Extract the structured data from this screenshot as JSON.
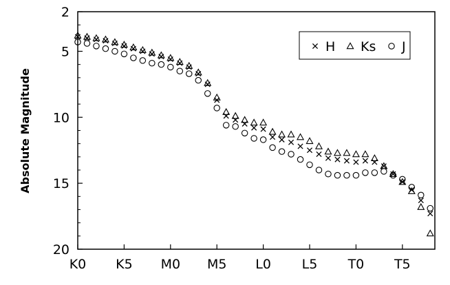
{
  "chart_data": {
    "type": "scatter",
    "title": "",
    "xlabel": "",
    "ylabel": "Absolute Magnitude",
    "x_ticks": [
      "K0",
      "K5",
      "M0",
      "M5",
      "L0",
      "L5",
      "T0",
      "T5"
    ],
    "xlim": [
      0,
      38.5
    ],
    "ylim": [
      20,
      2
    ],
    "y_ticks": [
      2,
      5,
      10,
      15,
      20
    ],
    "y_inverted": true,
    "grid": false,
    "legend_position": "top-right",
    "series": [
      {
        "name": "H",
        "marker": "x",
        "x": [
          0,
          1,
          2,
          3,
          4,
          5,
          6,
          7,
          8,
          9,
          10,
          11,
          12,
          13,
          14,
          15,
          16,
          17,
          18,
          19,
          20,
          21,
          22,
          23,
          24,
          25,
          26,
          27,
          28,
          29,
          30,
          31,
          32,
          33,
          34,
          35,
          36,
          37,
          38
        ],
        "y": [
          3.9,
          4.0,
          4.1,
          4.2,
          4.4,
          4.6,
          4.8,
          5.0,
          5.2,
          5.4,
          5.6,
          5.9,
          6.2,
          6.7,
          7.5,
          8.7,
          9.9,
          10.2,
          10.5,
          10.8,
          10.9,
          11.5,
          11.7,
          11.9,
          12.2,
          12.5,
          12.8,
          13.1,
          13.2,
          13.3,
          13.4,
          13.3,
          13.4,
          13.7,
          14.3,
          14.9,
          15.5,
          16.3,
          17.3
        ]
      },
      {
        "name": "Ks",
        "marker": "triangle",
        "x": [
          0,
          1,
          2,
          3,
          4,
          5,
          6,
          7,
          8,
          9,
          10,
          11,
          12,
          13,
          14,
          15,
          16,
          17,
          18,
          19,
          20,
          21,
          22,
          23,
          24,
          25,
          26,
          27,
          28,
          29,
          30,
          31,
          32,
          33,
          34,
          35,
          36,
          37,
          38
        ],
        "y": [
          3.8,
          3.9,
          4.0,
          4.1,
          4.3,
          4.5,
          4.7,
          4.9,
          5.1,
          5.3,
          5.5,
          5.8,
          6.1,
          6.6,
          7.4,
          8.5,
          9.6,
          9.9,
          10.2,
          10.4,
          10.4,
          11.1,
          11.3,
          11.3,
          11.5,
          11.8,
          12.2,
          12.6,
          12.7,
          12.7,
          12.8,
          12.8,
          13.1,
          13.7,
          14.3,
          14.9,
          15.6,
          16.8,
          18.8
        ]
      },
      {
        "name": "J",
        "marker": "circle",
        "x": [
          0,
          1,
          2,
          3,
          4,
          5,
          6,
          7,
          8,
          9,
          10,
          11,
          12,
          13,
          14,
          15,
          16,
          17,
          18,
          19,
          20,
          21,
          22,
          23,
          24,
          25,
          26,
          27,
          28,
          29,
          30,
          31,
          32,
          33,
          34,
          35,
          36,
          37,
          38
        ],
        "y": [
          4.3,
          4.4,
          4.6,
          4.8,
          5.0,
          5.2,
          5.5,
          5.7,
          5.9,
          6.0,
          6.2,
          6.5,
          6.7,
          7.2,
          8.2,
          9.3,
          10.6,
          10.7,
          11.2,
          11.6,
          11.7,
          12.3,
          12.6,
          12.8,
          13.2,
          13.6,
          14.0,
          14.3,
          14.4,
          14.4,
          14.4,
          14.2,
          14.2,
          14.1,
          14.4,
          14.7,
          15.3,
          15.9,
          16.9
        ]
      }
    ]
  }
}
